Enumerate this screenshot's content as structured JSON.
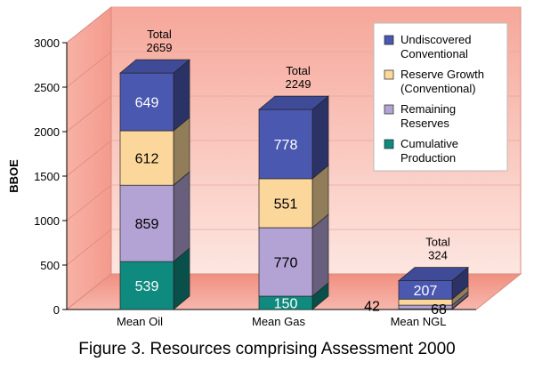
{
  "chart_data": {
    "type": "bar",
    "stacked": true,
    "three_d": true,
    "ylabel": "BBOE",
    "ylim": [
      0,
      3000
    ],
    "yticks": [
      0,
      500,
      1000,
      1500,
      2000,
      2500,
      3000
    ],
    "total_prefix": "Total",
    "categories": [
      "Mean Oil",
      "Mean Gas",
      "Mean NGL"
    ],
    "totals": [
      2659,
      2249,
      324
    ],
    "legend_position": "top-right",
    "series": [
      {
        "name": "Cumulative Production",
        "values": [
          539,
          150,
          7
        ],
        "labels": [
          "539",
          "150",
          ""
        ],
        "color": "#0f8a7f"
      },
      {
        "name": "Remaining Reserves",
        "values": [
          859,
          770,
          42
        ],
        "labels": [
          "859",
          "770",
          "42"
        ],
        "color": "#b2a3d4"
      },
      {
        "name": "Reserve Growth (Conventional)",
        "values": [
          612,
          551,
          68
        ],
        "labels": [
          "612",
          "551",
          "68"
        ],
        "color": "#fcd79b"
      },
      {
        "name": "Undiscovered Conventional",
        "values": [
          649,
          778,
          207
        ],
        "labels": [
          "649",
          "778",
          "207"
        ],
        "color": "#4a58b0"
      }
    ],
    "legend": [
      {
        "line1": "Undiscovered",
        "line2": "Conventional",
        "color": "#4a58b0"
      },
      {
        "line1": "Reserve Growth",
        "line2": "(Conventional)",
        "color": "#fcd79b"
      },
      {
        "line1": "Remaining",
        "line2": "Reserves",
        "color": "#b2a3d4"
      },
      {
        "line1": "Cumulative",
        "line2": "Production",
        "color": "#0f8a7f"
      }
    ]
  },
  "caption": "Figure 3.  Resources comprising Assessment 2000"
}
